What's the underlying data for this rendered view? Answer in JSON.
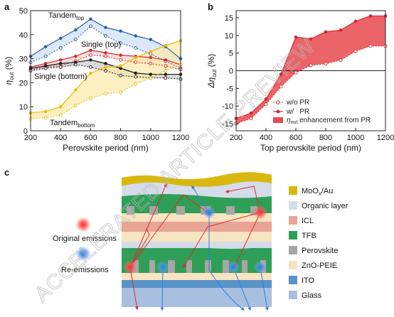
{
  "colors": {
    "tandem_top": "#2a5caa",
    "single_top": "#d9242b",
    "single_bottom": "#1a1a1a",
    "tandem_bottom": "#f2b705",
    "fill_tandem_top": "#cfe0f5",
    "fill_single_top": "#f6d3d3",
    "fill_single_bottom": "#cccccc",
    "fill_tandem_bottom": "#fbeaa8",
    "fill_enhancement": "#e8494d"
  },
  "panel_a": {
    "label": "a"
  },
  "panel_b": {
    "label": "b"
  },
  "panel_c": {
    "label": "c"
  },
  "watermark": "ACCELERATED ARTICLE PREVIEW",
  "chart_data": [
    {
      "type": "line",
      "panel": "a",
      "xlabel": "Perovskite period (nm)",
      "ylabel": "η_out (%)",
      "ylabel_main": "η",
      "ylabel_sub": "out",
      "ylabel_unit": " (%)",
      "xlim": [
        200,
        1200
      ],
      "ylim": [
        0,
        50
      ],
      "xticks": [
        "200",
        "400",
        "600",
        "800",
        "1000",
        "1200"
      ],
      "yticks": [
        "0",
        "10",
        "20",
        "30",
        "40",
        "50"
      ],
      "x": [
        200,
        300,
        400,
        500,
        600,
        700,
        800,
        900,
        1000,
        1100,
        1200
      ],
      "series": [
        {
          "name_main": "Tandem",
          "name_sub": "top",
          "color_key": "tandem_top",
          "with_pr": [
            31,
            35,
            38.5,
            42,
            46.5,
            43,
            41.5,
            39.5,
            38,
            35,
            30
          ],
          "without_pr": [
            28.5,
            31,
            34.5,
            38,
            43.5,
            39.5,
            36.5,
            34.5,
            32,
            29,
            26
          ]
        },
        {
          "name": "Single (top)",
          "color_key": "single_top",
          "with_pr": [
            26.5,
            28,
            29.5,
            31,
            33.5,
            32.5,
            31.5,
            31,
            30.5,
            29.5,
            27.5
          ],
          "without_pr": [
            25.5,
            26.5,
            27,
            29,
            31.5,
            31,
            29.5,
            28.5,
            28,
            27,
            25.5
          ]
        },
        {
          "name": "Single (bottom)",
          "color_key": "single_bottom",
          "with_pr": [
            26,
            27,
            28,
            28.5,
            29.5,
            28,
            26,
            24,
            23.5,
            23.5,
            23.5
          ],
          "without_pr": [
            25,
            26,
            26.5,
            27.5,
            26.5,
            25,
            23,
            22.5,
            22,
            22,
            21.5
          ]
        },
        {
          "name_main": "Tandem",
          "name_sub": "bottom",
          "color_key": "tandem_bottom",
          "with_pr": [
            7.5,
            8,
            10,
            17,
            24,
            26.5,
            27,
            30.5,
            33,
            35.5,
            37.5
          ],
          "without_pr": [
            5,
            5.5,
            6.5,
            10.5,
            13.5,
            15.5,
            16,
            19.5,
            22,
            25,
            27.5
          ]
        }
      ]
    },
    {
      "type": "area",
      "panel": "b",
      "xlabel": "Top perovskite period (nm)",
      "ylabel": "Δη_out (%)",
      "ylabel_main": "Δη",
      "ylabel_sub": "out",
      "ylabel_unit": " (%)",
      "xlim": [
        200,
        1200
      ],
      "ylim": [
        -17,
        17
      ],
      "xticks": [
        "200",
        "400",
        "600",
        "800",
        "1000",
        "1200"
      ],
      "yticks": [
        "-15",
        "-10",
        "-5",
        "0",
        "5",
        "10",
        "15"
      ],
      "x": [
        200,
        300,
        400,
        500,
        600,
        700,
        800,
        900,
        1000,
        1100,
        1200
      ],
      "series": [
        {
          "name": "w/o PR",
          "style": "dashed-open",
          "values": [
            -15,
            -13.5,
            -9.5,
            -4.5,
            -0.5,
            1.5,
            2,
            3,
            5.5,
            7,
            7
          ]
        },
        {
          "name": "w/   PR",
          "style": "solid-filled",
          "values": [
            -13.5,
            -12,
            -8,
            -1,
            9.5,
            9,
            11,
            11.5,
            14,
            15.5,
            15.5
          ]
        }
      ],
      "enhancement_legend_main": "η",
      "enhancement_legend_sub": "out",
      "enhancement_legend_rest": " enhancement from PR",
      "legend_position": "bottom-right"
    }
  ],
  "schematic": {
    "legend": [
      {
        "label_main": "MoO",
        "label_sub": "x",
        "label_rest": "/Au",
        "color": "#d8b80f"
      },
      {
        "label_main": "Organic layer",
        "color": "#d4dcea"
      },
      {
        "label_main": "ICL",
        "color": "#e8a496"
      },
      {
        "label_main": "TFB",
        "color": "#2f9e57"
      },
      {
        "label_main": "Perovskite",
        "color": "#a8a5a5"
      },
      {
        "label_main": "ZnO-PEIE",
        "color": "#f7e4c0"
      },
      {
        "label_main": "ITO",
        "color": "#5a93c8"
      },
      {
        "label_main": "Glass",
        "color": "#a9bfe0"
      }
    ],
    "original_emissions_label": "Original emissions",
    "re_emissions_label": "Re-emissions"
  }
}
